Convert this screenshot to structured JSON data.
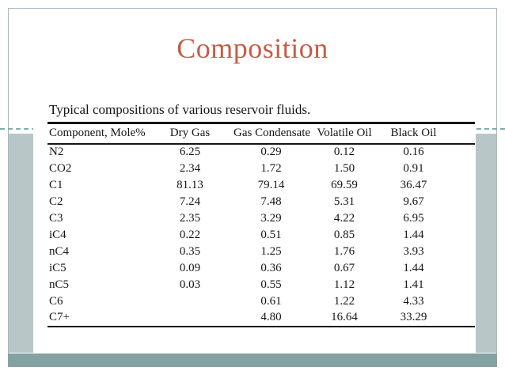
{
  "slide": {
    "title": "Composition"
  },
  "table": {
    "caption": "Typical compositions of various reservoir fluids.",
    "headers": [
      "Component, Mole%",
      "Dry Gas",
      "Gas Condensate",
      "Volatile Oil",
      "Black Oil"
    ],
    "rows": [
      {
        "component": "N2",
        "values": [
          "6.25",
          "0.29",
          "0.12",
          "0.16"
        ]
      },
      {
        "component": "CO2",
        "values": [
          "2.34",
          "1.72",
          "1.50",
          "0.91"
        ]
      },
      {
        "component": "C1",
        "values": [
          "81.13",
          "79.14",
          "69.59",
          "36.47"
        ]
      },
      {
        "component": "C2",
        "values": [
          "7.24",
          "7.48",
          "5.31",
          "9.67"
        ]
      },
      {
        "component": "C3",
        "values": [
          "2.35",
          "3.29",
          "4.22",
          "6.95"
        ]
      },
      {
        "component": "iC4",
        "values": [
          "0.22",
          "0.51",
          "0.85",
          "1.44"
        ]
      },
      {
        "component": "nC4",
        "values": [
          "0.35",
          "1.25",
          "1.76",
          "3.93"
        ]
      },
      {
        "component": "iC5",
        "values": [
          "0.09",
          "0.36",
          "0.67",
          "1.44"
        ]
      },
      {
        "component": "nC5",
        "values": [
          "0.03",
          "0.55",
          "1.12",
          "1.41"
        ]
      },
      {
        "component": "C6",
        "values": [
          "",
          "0.61",
          "1.22",
          "4.33"
        ]
      },
      {
        "component": "C7+",
        "values": [
          "",
          "4.80",
          "16.64",
          "33.29"
        ]
      }
    ]
  },
  "theme_colors": {
    "title_text": "#c65c46",
    "side_band": "#b9c6c8",
    "bottom_bar": "#85a2a3",
    "frame_border": "#a5babc",
    "dashed_line": "#7fadad",
    "table_text": "#151515"
  }
}
